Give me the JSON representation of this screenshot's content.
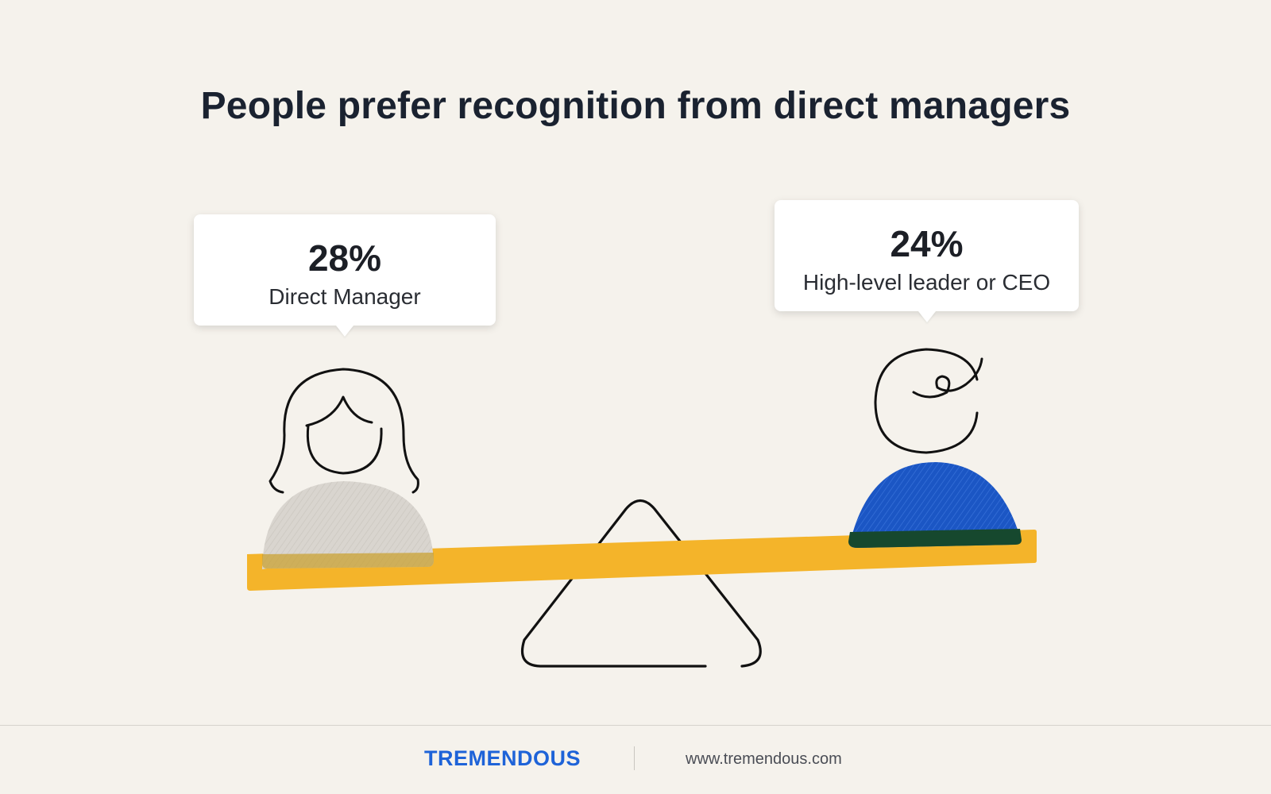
{
  "title": "People prefer recognition from direct managers",
  "callouts": [
    {
      "value": "28%",
      "label": "Direct Manager"
    },
    {
      "value": "24%",
      "label": "High-level leader or CEO"
    }
  ],
  "footer": {
    "brand": "TREMENDOUS",
    "website": "www.tremendous.com"
  },
  "colors": {
    "background": "#f5f2ec",
    "seesaw": "#f4b42a",
    "manager_body": "#d9d5cf",
    "leader_body": "#1b56c4",
    "brand": "#1e63d8"
  },
  "icons": [
    "woman-icon",
    "man-icon",
    "seesaw-icon",
    "fulcrum-icon"
  ]
}
